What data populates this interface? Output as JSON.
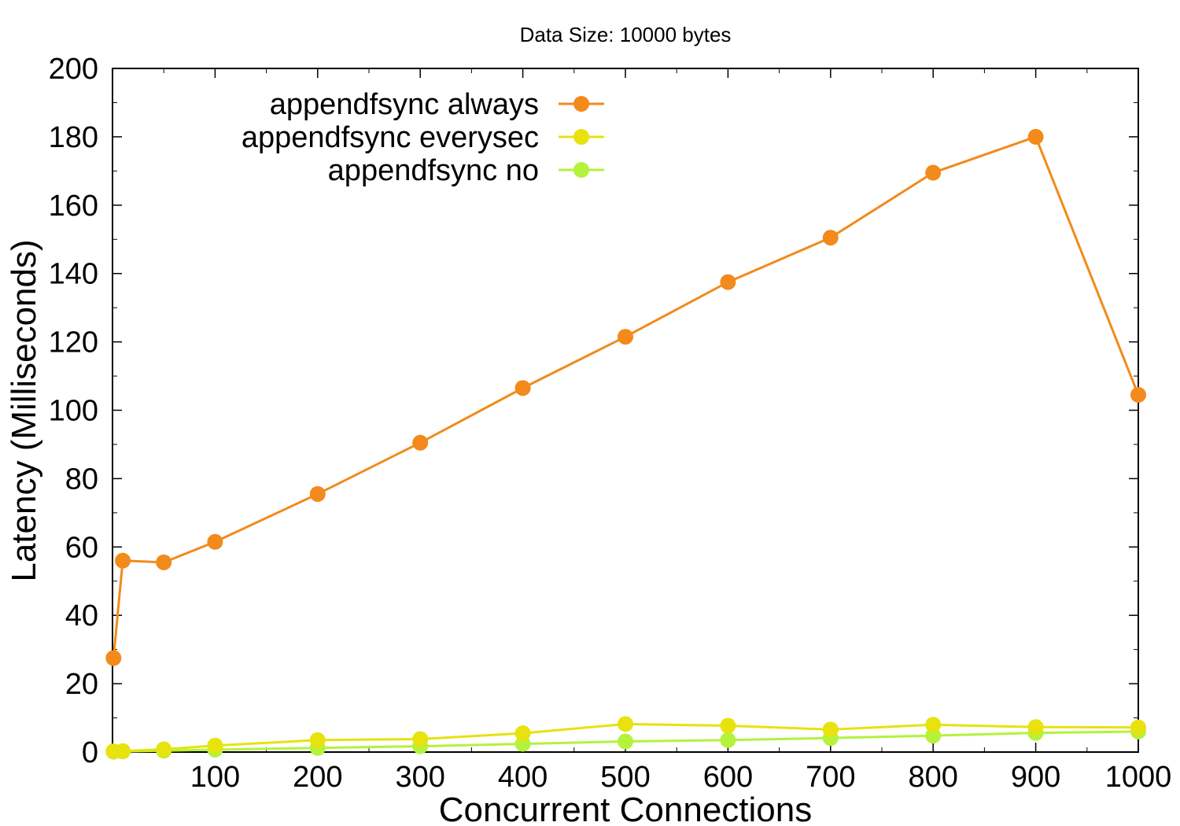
{
  "chart_data": {
    "type": "line",
    "title": "Data Size: 10000 bytes",
    "xlabel": "Concurrent Connections",
    "ylabel": "Latency (Milliseconds)",
    "xlim": [
      0,
      1000
    ],
    "ylim": [
      0,
      200
    ],
    "xticks": [
      100,
      200,
      300,
      400,
      500,
      600,
      700,
      800,
      900,
      1000
    ],
    "yticks": [
      0,
      20,
      40,
      60,
      80,
      100,
      120,
      140,
      160,
      180,
      200
    ],
    "grid": false,
    "legend_position": "top-left",
    "x": [
      1,
      10,
      50,
      100,
      200,
      300,
      400,
      500,
      600,
      700,
      800,
      900,
      1000
    ],
    "series": [
      {
        "name": "appendfsync always",
        "color": "#f28a1c",
        "values": [
          27.5,
          56,
          55.5,
          61.5,
          75.5,
          90.5,
          106.5,
          121.5,
          137.5,
          150.5,
          169.5,
          180,
          104.5
        ]
      },
      {
        "name": "appendfsync everysec",
        "color": "#e8e20e",
        "values": [
          0.2,
          0.3,
          0.8,
          1.9,
          3.5,
          3.8,
          5.5,
          8.2,
          7.7,
          6.6,
          8,
          7.3,
          7.2
        ]
      },
      {
        "name": "appendfsync no",
        "color": "#b4f23c",
        "values": [
          0.1,
          0.2,
          0.4,
          0.7,
          1.2,
          1.7,
          2.4,
          3.1,
          3.5,
          4.1,
          4.8,
          5.6,
          6
        ]
      }
    ]
  }
}
